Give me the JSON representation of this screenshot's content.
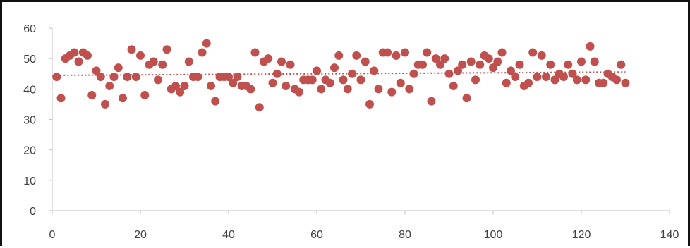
{
  "chart_data": {
    "type": "scatter",
    "title": "",
    "xlabel": "",
    "ylabel": "",
    "xlim": [
      0,
      140
    ],
    "ylim": [
      0,
      60
    ],
    "x_ticks": [
      0,
      20,
      40,
      60,
      80,
      100,
      120,
      140
    ],
    "y_ticks": [
      0,
      10,
      20,
      30,
      40,
      50,
      60
    ],
    "grid": false,
    "legend": "none",
    "colors": {
      "points": "#c0504d",
      "trendline": "#c0504d",
      "axis": "#bfbfbf",
      "text": "#404040"
    },
    "trendline": {
      "type": "linear",
      "style": "dotted",
      "x": [
        1,
        130
      ],
      "y": [
        44.5,
        45.6
      ]
    },
    "series": [
      {
        "x": [
          1,
          2,
          3,
          4,
          5,
          6,
          7,
          8,
          9,
          10,
          11,
          12,
          13,
          14,
          15,
          16,
          17,
          18,
          19,
          20,
          21,
          22,
          23,
          24,
          25,
          26,
          27,
          28,
          29,
          30,
          31,
          32,
          33,
          34,
          35,
          36,
          37,
          38,
          39,
          40,
          41,
          42,
          43,
          44,
          45,
          46,
          47,
          48,
          49,
          50,
          51,
          52,
          53,
          54,
          55,
          56,
          57,
          58,
          59,
          60,
          61,
          62,
          63,
          64,
          65,
          66,
          67,
          68,
          69,
          70,
          71,
          72,
          73,
          74,
          75,
          76,
          77,
          78,
          79,
          80,
          81,
          82,
          83,
          84,
          85,
          86,
          87,
          88,
          89,
          90,
          91,
          92,
          93,
          94,
          95,
          96,
          97,
          98,
          99,
          100,
          101,
          102,
          103,
          104,
          105,
          106,
          107,
          108,
          109,
          110,
          111,
          112,
          113,
          114,
          115,
          116,
          117,
          118,
          119,
          120,
          121,
          122,
          123,
          124,
          125,
          126,
          127,
          128,
          129,
          130
        ],
        "y": [
          44,
          37,
          50,
          51,
          52,
          49,
          52,
          51,
          38,
          46,
          44,
          35,
          41,
          44,
          47,
          37,
          44,
          53,
          44,
          51,
          38,
          48,
          49,
          43,
          48,
          53,
          40,
          41,
          39,
          41,
          49,
          44,
          44,
          52,
          55,
          41,
          36,
          44,
          44,
          44,
          42,
          44,
          41,
          41,
          40,
          52,
          34,
          49,
          50,
          42,
          45,
          49,
          41,
          48,
          40,
          39,
          43,
          43,
          43,
          46,
          40,
          43,
          42,
          47,
          51,
          43,
          40,
          45,
          51,
          43,
          49,
          35,
          46,
          40,
          52,
          52,
          39,
          51,
          42,
          52,
          40,
          45,
          48,
          48,
          52,
          36,
          50,
          48,
          50,
          45,
          41,
          46,
          48,
          37,
          49,
          43,
          48,
          51,
          50,
          47,
          49,
          52,
          42,
          46,
          44,
          48,
          41,
          42,
          52,
          44,
          51,
          44,
          48,
          43,
          45,
          44,
          48,
          45,
          43,
          49,
          43,
          54,
          49,
          42,
          42,
          45,
          44,
          43,
          48,
          42
        ]
      }
    ]
  }
}
